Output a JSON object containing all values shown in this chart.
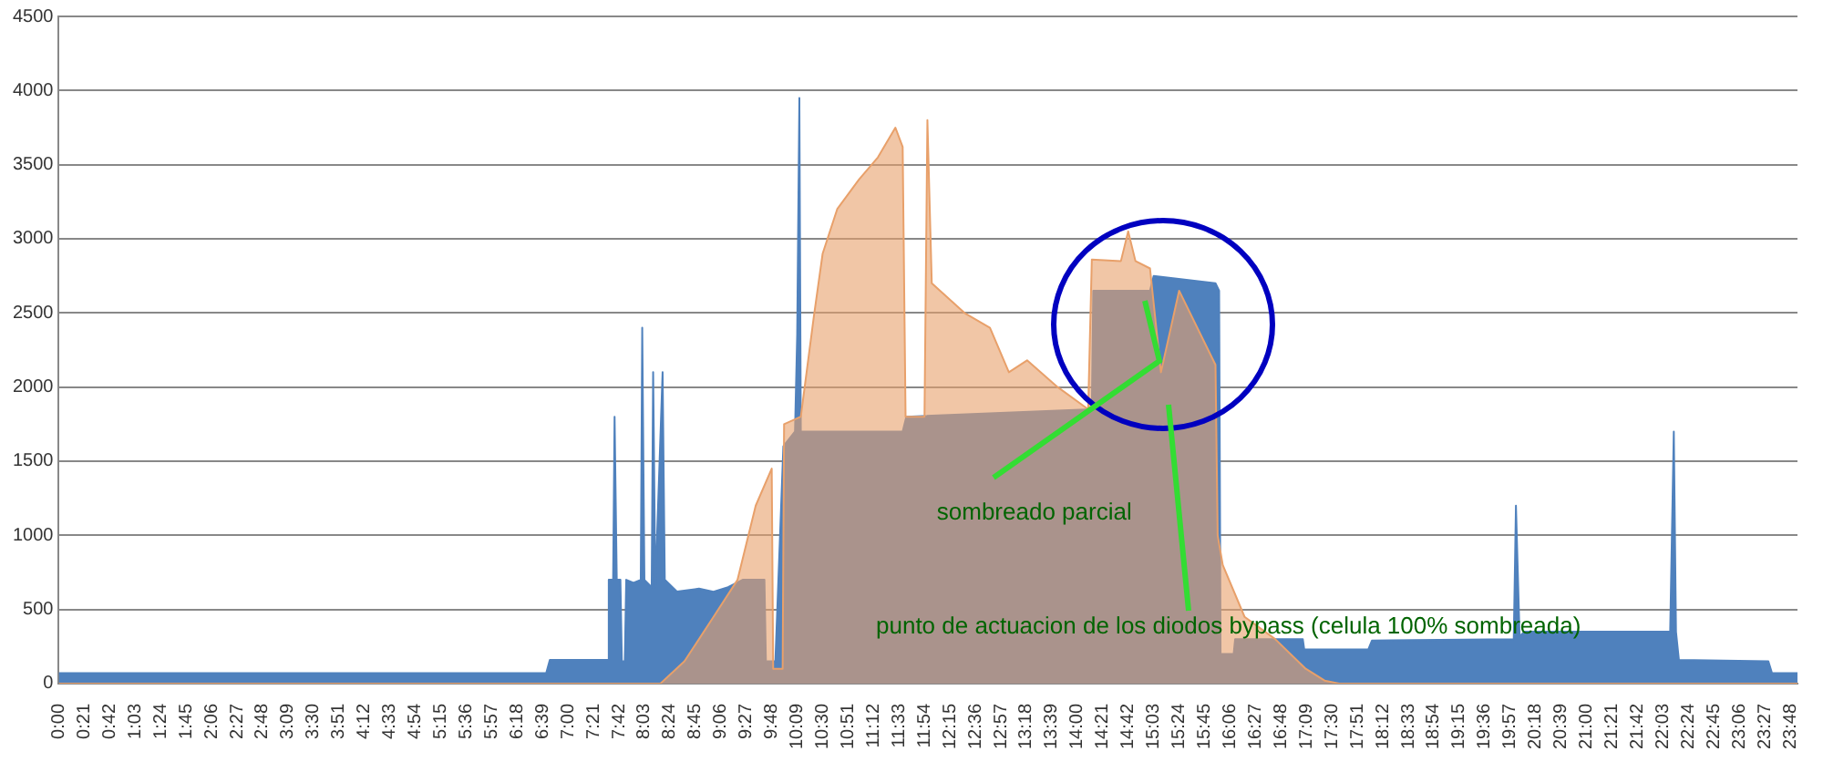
{
  "chart_data": {
    "type": "area",
    "xlim": [
      0,
      23.9
    ],
    "ylim": [
      0,
      4500
    ],
    "xticks": [
      {
        "value": 0,
        "label": "0:00"
      },
      {
        "value": 0.35,
        "label": "0:21"
      },
      {
        "value": 0.7,
        "label": "0:42"
      },
      {
        "value": 1.05,
        "label": "1:03"
      },
      {
        "value": 1.4,
        "label": "1:24"
      },
      {
        "value": 1.75,
        "label": "1:45"
      },
      {
        "value": 2.1,
        "label": "2:06"
      },
      {
        "value": 2.45,
        "label": "2:27"
      },
      {
        "value": 2.8,
        "label": "2:48"
      },
      {
        "value": 3.15,
        "label": "3:09"
      },
      {
        "value": 3.5,
        "label": "3:30"
      },
      {
        "value": 3.85,
        "label": "3:51"
      },
      {
        "value": 4.2,
        "label": "4:12"
      },
      {
        "value": 4.55,
        "label": "4:33"
      },
      {
        "value": 4.9,
        "label": "4:54"
      },
      {
        "value": 5.25,
        "label": "5:15"
      },
      {
        "value": 5.6,
        "label": "5:36"
      },
      {
        "value": 5.95,
        "label": "5:57"
      },
      {
        "value": 6.3,
        "label": "6:18"
      },
      {
        "value": 6.65,
        "label": "6:39"
      },
      {
        "value": 7,
        "label": "7:00"
      },
      {
        "value": 7.35,
        "label": "7:21"
      },
      {
        "value": 7.7,
        "label": "7:42"
      },
      {
        "value": 8.05,
        "label": "8:03"
      },
      {
        "value": 8.4,
        "label": "8:24"
      },
      {
        "value": 8.75,
        "label": "8:45"
      },
      {
        "value": 9.1,
        "label": "9:06"
      },
      {
        "value": 9.45,
        "label": "9:27"
      },
      {
        "value": 9.8,
        "label": "9:48"
      },
      {
        "value": 10.15,
        "label": "10:09"
      },
      {
        "value": 10.5,
        "label": "10:30"
      },
      {
        "value": 10.85,
        "label": "10:51"
      },
      {
        "value": 11.2,
        "label": "11:12"
      },
      {
        "value": 11.55,
        "label": "11:33"
      },
      {
        "value": 11.9,
        "label": "11:54"
      },
      {
        "value": 12.25,
        "label": "12:15"
      },
      {
        "value": 12.6,
        "label": "12:36"
      },
      {
        "value": 12.95,
        "label": "12:57"
      },
      {
        "value": 13.3,
        "label": "13:18"
      },
      {
        "value": 13.65,
        "label": "13:39"
      },
      {
        "value": 14,
        "label": "14:00"
      },
      {
        "value": 14.35,
        "label": "14:21"
      },
      {
        "value": 14.7,
        "label": "14:42"
      },
      {
        "value": 15.05,
        "label": "15:03"
      },
      {
        "value": 15.4,
        "label": "15:24"
      },
      {
        "value": 15.75,
        "label": "15:45"
      },
      {
        "value": 16.1,
        "label": "16:06"
      },
      {
        "value": 16.45,
        "label": "16:27"
      },
      {
        "value": 16.8,
        "label": "16:48"
      },
      {
        "value": 17.15,
        "label": "17:09"
      },
      {
        "value": 17.5,
        "label": "17:30"
      },
      {
        "value": 17.85,
        "label": "17:51"
      },
      {
        "value": 18.2,
        "label": "18:12"
      },
      {
        "value": 18.55,
        "label": "18:33"
      },
      {
        "value": 18.9,
        "label": "18:54"
      },
      {
        "value": 19.25,
        "label": "19:15"
      },
      {
        "value": 19.6,
        "label": "19:36"
      },
      {
        "value": 19.95,
        "label": "19:57"
      },
      {
        "value": 20.3,
        "label": "20:18"
      },
      {
        "value": 20.65,
        "label": "20:39"
      },
      {
        "value": 21,
        "label": "21:00"
      },
      {
        "value": 21.35,
        "label": "21:21"
      },
      {
        "value": 21.7,
        "label": "21:42"
      },
      {
        "value": 22.05,
        "label": "22:03"
      },
      {
        "value": 22.4,
        "label": "22:24"
      },
      {
        "value": 22.75,
        "label": "22:45"
      },
      {
        "value": 23.1,
        "label": "23:06"
      },
      {
        "value": 23.45,
        "label": "23:27"
      },
      {
        "value": 23.8,
        "label": "23:48"
      }
    ],
    "yticks": [
      0,
      500,
      1000,
      1500,
      2000,
      2500,
      3000,
      3500,
      4000,
      4500
    ],
    "grid": "y",
    "series": [
      {
        "color": "#4f81bd",
        "x": [
          0,
          6.7,
          6.75,
          7.55,
          7.56,
          7.62,
          7.64,
          7.67,
          7.72,
          7.74,
          7.78,
          7.8,
          7.9,
          8.0,
          8.02,
          8.05,
          8.15,
          8.17,
          8.2,
          8.3,
          8.33,
          8.5,
          8.8,
          9.0,
          9.2,
          9.4,
          9.7,
          9.72,
          9.85,
          9.96,
          10.12,
          10.15,
          10.18,
          10.2,
          11.6,
          11.65,
          14.2,
          14.22,
          15.0,
          15.05,
          15.9,
          15.95,
          15.97,
          16.15,
          16.17,
          17.1,
          17.12,
          18.0,
          18.05,
          20.0,
          20.03,
          20.08,
          20.15,
          22.15,
          22.2,
          22.23,
          22.27,
          23.5,
          23.55,
          23.9
        ],
        "values": [
          70,
          70,
          160,
          160,
          700,
          700,
          1800,
          700,
          700,
          150,
          150,
          700,
          680,
          700,
          2400,
          700,
          650,
          2100,
          650,
          2100,
          700,
          620,
          640,
          620,
          650,
          700,
          700,
          150,
          150,
          1600,
          1700,
          2350,
          3950,
          1700,
          1700,
          1800,
          1850,
          2650,
          2650,
          2750,
          2700,
          2650,
          200,
          200,
          300,
          300,
          230,
          230,
          290,
          300,
          1200,
          320,
          350,
          350,
          1700,
          350,
          160,
          150,
          70,
          70
        ]
      },
      {
        "color": "#e8a06a",
        "x": [
          0,
          8.27,
          8.6,
          9.0,
          9.33,
          9.58,
          9.8,
          9.82,
          9.95,
          9.97,
          10.2,
          10.38,
          10.5,
          10.7,
          11.0,
          11.26,
          11.5,
          11.6,
          11.64,
          11.9,
          11.94,
          12.0,
          12.45,
          12.8,
          13.06,
          13.31,
          13.73,
          14.15,
          14.2,
          14.6,
          14.7,
          14.8,
          15.0,
          15.15,
          15.4,
          15.9,
          15.93,
          16.0,
          16.3,
          16.72,
          17.14,
          17.4,
          17.6,
          23.9
        ],
        "values": [
          0,
          0,
          150,
          450,
          700,
          1200,
          1450,
          100,
          100,
          1750,
          1800,
          2480,
          2900,
          3200,
          3400,
          3550,
          3750,
          3620,
          1800,
          1800,
          3800,
          2700,
          2500,
          2400,
          2100,
          2180,
          2000,
          1850,
          2860,
          2850,
          3050,
          2850,
          2800,
          2100,
          2650,
          2150,
          1000,
          800,
          450,
          300,
          100,
          20,
          0,
          0
        ]
      }
    ],
    "annotations": [
      "sombreado parcial",
      "punto de actuacion de los diodos bypass (celula 100% sombreada)"
    ]
  }
}
